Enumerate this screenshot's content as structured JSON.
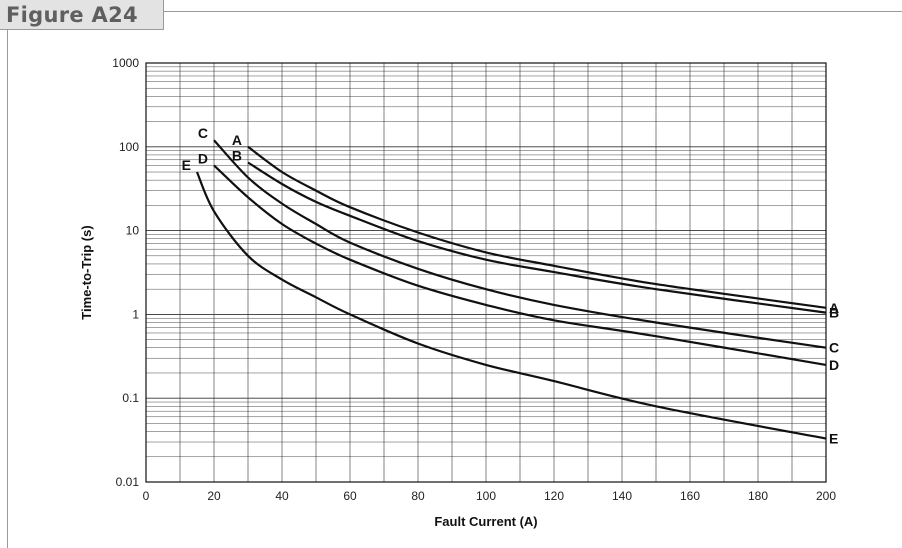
{
  "figure": {
    "title": "Figure A24"
  },
  "colors": {
    "line": "#111111",
    "grid": "#333333",
    "tab_bg": "#e3e3e3",
    "rule": "#9a9a9a"
  },
  "chart_data": {
    "type": "line",
    "xlabel": "Fault Current (A)",
    "ylabel": "Time-to-Trip (s)",
    "xlim": [
      0,
      200
    ],
    "ylim": [
      0.01,
      1000
    ],
    "yscale": "log",
    "grid": true,
    "x_ticks": [
      "0",
      "20",
      "40",
      "60",
      "80",
      "100",
      "120",
      "140",
      "160",
      "180",
      "200"
    ],
    "y_ticks": [
      "0.01",
      "0.1",
      "1",
      "10",
      "100",
      "1000"
    ],
    "series": [
      {
        "name": "A",
        "x": [
          30,
          40,
          50,
          60,
          80,
          100,
          120,
          150,
          200
        ],
        "y": [
          100,
          50,
          30,
          19,
          9.5,
          5.5,
          3.8,
          2.3,
          1.2
        ]
      },
      {
        "name": "B",
        "x": [
          30,
          40,
          50,
          60,
          80,
          100,
          120,
          150,
          200
        ],
        "y": [
          65,
          36,
          22,
          15,
          7.5,
          4.5,
          3.2,
          2.0,
          1.05
        ]
      },
      {
        "name": "C",
        "x": [
          20,
          30,
          40,
          50,
          60,
          80,
          100,
          120,
          150,
          200
        ],
        "y": [
          120,
          43,
          21,
          12,
          7.2,
          3.5,
          2.0,
          1.3,
          0.8,
          0.4
        ]
      },
      {
        "name": "D",
        "x": [
          20,
          30,
          40,
          50,
          60,
          80,
          100,
          120,
          150,
          200
        ],
        "y": [
          60,
          25,
          12,
          7.0,
          4.5,
          2.2,
          1.3,
          0.85,
          0.55,
          0.25
        ]
      },
      {
        "name": "E",
        "x": [
          15,
          20,
          30,
          40,
          50,
          60,
          80,
          100,
          120,
          150,
          200
        ],
        "y": [
          50,
          17,
          5.0,
          2.6,
          1.6,
          1.0,
          0.45,
          0.25,
          0.16,
          0.08,
          0.033
        ]
      }
    ]
  }
}
